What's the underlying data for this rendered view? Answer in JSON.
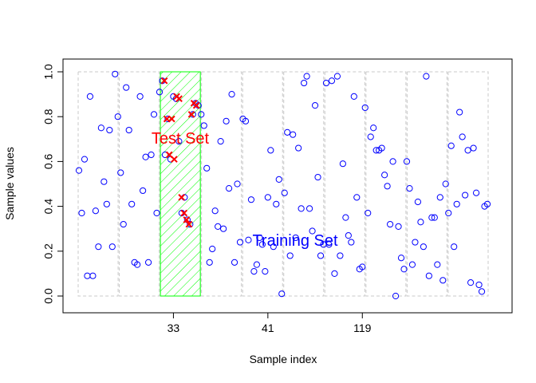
{
  "chart_data": {
    "type": "scatter",
    "title": "",
    "xlabel": "Sample index",
    "ylabel": "Sample values",
    "ylim": [
      0,
      1
    ],
    "y_ticks": [
      "0.0",
      "0.2",
      "0.4",
      "0.6",
      "0.8",
      "1.0"
    ],
    "y_tick_values": [
      0,
      0.2,
      0.4,
      0.6,
      0.8,
      1.0
    ],
    "x_tick_labels": [
      "33",
      "41",
      "119"
    ],
    "x_tick_positions": [
      34,
      68,
      102
    ],
    "n_folds": 10,
    "samples_per_fold": 10,
    "test_fold": 3,
    "colors": {
      "training": "#0000ff",
      "test": "#ff0000",
      "test_fill": "#00ff00",
      "fold_box": "#c8c8c8",
      "axis": "#000000"
    },
    "annotations": {
      "test_label": "Test Set",
      "training_label": "Training Set"
    },
    "values": [
      0.56,
      0.37,
      0.61,
      0.09,
      0.89,
      0.09,
      0.38,
      0.22,
      0.75,
      0.51,
      0.41,
      0.74,
      0.22,
      0.99,
      0.8,
      0.55,
      0.32,
      0.93,
      0.74,
      0.41,
      0.15,
      0.14,
      0.89,
      0.47,
      0.62,
      0.15,
      0.63,
      0.81,
      0.37,
      0.91,
      0.96,
      0.63,
      0.79,
      0.61,
      0.89,
      0.88,
      0.69,
      0.37,
      0.44,
      0.34,
      0.32,
      0.81,
      0.86,
      0.85,
      0.81,
      0.76,
      0.57,
      0.15,
      0.21,
      0.38,
      0.31,
      0.69,
      0.3,
      0.78,
      0.48,
      0.9,
      0.15,
      0.5,
      0.24,
      0.79,
      0.78,
      0.25,
      0.43,
      0.11,
      0.14,
      0.26,
      0.23,
      0.11,
      0.44,
      0.65,
      0.22,
      0.41,
      0.52,
      0.01,
      0.46,
      0.73,
      0.18,
      0.72,
      0.26,
      0.66,
      0.39,
      0.95,
      0.98,
      0.39,
      0.29,
      0.85,
      0.53,
      0.18,
      0.23,
      0.95,
      0.23,
      0.96,
      0.1,
      0.98,
      0.18,
      0.59,
      0.35,
      0.27,
      0.24,
      0.89,
      0.44,
      0.12,
      0.13,
      0.84,
      0.37,
      0.71,
      0.75,
      0.65,
      0.65,
      0.66,
      0.54,
      0.49,
      0.32,
      0.6,
      0.0,
      0.31,
      0.17,
      0.12,
      0.6,
      0.48,
      0.14,
      0.24,
      0.42,
      0.33,
      0.22,
      0.98,
      0.09,
      0.35,
      0.35,
      0.14,
      0.44,
      0.07,
      0.5,
      0.37,
      0.67,
      0.22,
      0.41,
      0.82,
      0.71,
      0.45,
      0.65,
      0.06,
      0.66,
      0.46,
      0.05,
      0.02,
      0.4,
      0.41
    ],
    "test_values": [
      0.96,
      0.79,
      0.63,
      0.79,
      0.61,
      0.89,
      0.88,
      0.44,
      0.37,
      0.34,
      0.32,
      0.81,
      0.86,
      0.85
    ]
  }
}
